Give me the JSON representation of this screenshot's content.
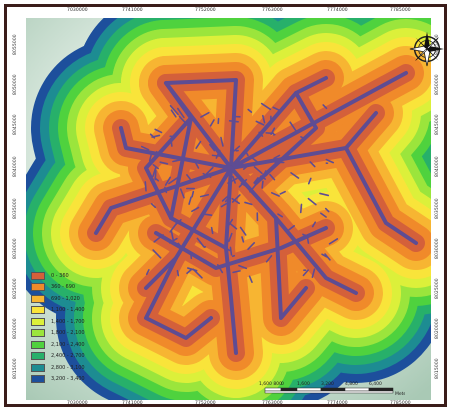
{
  "map": {
    "top_ticks": [
      "7030000",
      "7741000",
      "7752000",
      "7763000",
      "7774000",
      "7785000",
      "7796000"
    ],
    "bottom_ticks": [
      "7030000",
      "7741000",
      "7752000",
      "7763000",
      "7774000",
      "7785000",
      "7796000"
    ],
    "left_ticks": [
      "8055000",
      "8050000",
      "8045000",
      "8040000",
      "8035000",
      "8030000",
      "8025000",
      "8020000",
      "8015000",
      "8010000"
    ],
    "right_ticks": [
      "8055000",
      "8050000",
      "8045000",
      "8040000",
      "8035000",
      "8030000",
      "8025000",
      "8020000",
      "8015000",
      "8010000"
    ]
  },
  "legend": {
    "items": [
      {
        "label": "0 - 360",
        "color": "#d4603a"
      },
      {
        "label": "360 - 690",
        "color": "#f08a2a"
      },
      {
        "label": "690 - 1,020",
        "color": "#f7b532"
      },
      {
        "label": "1,100 - 1,400",
        "color": "#f9e43a"
      },
      {
        "label": "1,400 - 1,700",
        "color": "#dcf03a"
      },
      {
        "label": "1,800 - 2,100",
        "color": "#9be53c"
      },
      {
        "label": "2,100 - 2,400",
        "color": "#4fd23e"
      },
      {
        "label": "2,400 - 2,700",
        "color": "#27b06a"
      },
      {
        "label": "2,800 - 3,100",
        "color": "#1d8c92"
      },
      {
        "label": "3,200 - 3,400",
        "color": "#1d4f9c"
      }
    ]
  },
  "scale": {
    "labels": [
      "1,600 800",
      "0",
      "1,600",
      "3,200",
      "4,800",
      "6,400"
    ],
    "unit": "Meters"
  },
  "colors": {
    "background_outer": "#bcd7c6",
    "background_inner": "#f4f7f2",
    "road_network": "#5e4c93",
    "frame": "#3b1d1a"
  }
}
